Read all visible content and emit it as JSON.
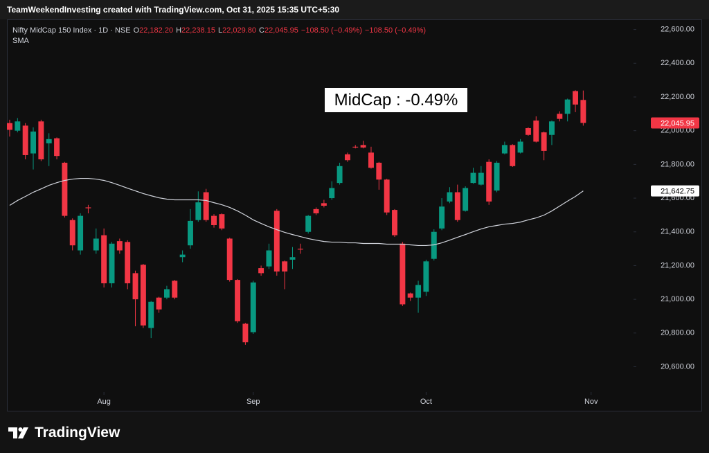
{
  "header": {
    "text": "TeamWeekendInvesting created with TradingView.com, Oct 31, 2025 15:35 UTC+5:30"
  },
  "chart_data": {
    "type": "candlestick",
    "symbol": "Nifty MidCap 150 Index · 1D · NSE",
    "ohlc_legend": [
      {
        "label": "O",
        "value": "22,182.20"
      },
      {
        "label": "H",
        "value": "22,238.15"
      },
      {
        "label": "L",
        "value": "22,029.80"
      },
      {
        "label": "C",
        "value": "22,045.95"
      }
    ],
    "change_labels": [
      "−108.50 (−0.49%)",
      "−108.50 (−0.49%)"
    ],
    "indicator_label": "SMA",
    "annotation": "MidCap : -0.49%",
    "up_color": "#089981",
    "down_color": "#f23645",
    "grid": false,
    "xlim": [
      -0.35,
      79.4
    ],
    "xticks": [
      {
        "value": 12,
        "label": "Aug"
      },
      {
        "value": 31,
        "label": "Sep"
      },
      {
        "value": 53,
        "label": "Oct"
      },
      {
        "value": 74,
        "label": "Nov"
      }
    ],
    "ylim": [
      20450,
      22660
    ],
    "yticks": [
      {
        "value": 20600,
        "label": "20,600.00"
      },
      {
        "value": 20800,
        "label": "20,800.00"
      },
      {
        "value": 21000,
        "label": "21,000.00"
      },
      {
        "value": 21200,
        "label": "21,200.00"
      },
      {
        "value": 21400,
        "label": "21,400.00"
      },
      {
        "value": 21600,
        "label": "21,600.00"
      },
      {
        "value": 21800,
        "label": "21,800.00"
      },
      {
        "value": 22000,
        "label": "22,000.00"
      },
      {
        "value": 22200,
        "label": "22,200.00"
      },
      {
        "value": 22400,
        "label": "22,400.00"
      },
      {
        "value": 22600,
        "label": "22,600.00"
      }
    ],
    "open": [
      22045,
      22000,
      22030,
      21865,
      22055,
      21925,
      21955,
      21810,
      21470,
      21290,
      21545,
      21290,
      21380,
      21095,
      21345,
      21340,
      21155,
      21205,
      20830,
      21010,
      21010,
      21110,
      21250,
      21320,
      21470,
      21635,
      21495,
      21505,
      21360,
      21115,
      20855,
      20805,
      21185,
      21195,
      21525,
      21225,
      21235,
      21300,
      21400,
      21535,
      21570,
      21600,
      21690,
      21860,
      21905,
      21915,
      21870,
      21810,
      21710,
      21530,
      21330,
      21035,
      21010,
      21045,
      21240,
      21420,
      21580,
      21635,
      21525,
      21690,
      21680,
      21815,
      21645,
      21865,
      21915,
      21870,
      22015,
      22060,
      21990,
      21975,
      22100,
      22100,
      22235,
      22182.2
    ],
    "high": [
      22065,
      22075,
      22045,
      22020,
      22065,
      21985,
      21960,
      21815,
      21480,
      21510,
      21560,
      21420,
      21420,
      21340,
      21360,
      21350,
      21170,
      21210,
      20990,
      21015,
      21080,
      21115,
      21290,
      21535,
      21640,
      21655,
      21505,
      21510,
      21365,
      21120,
      20860,
      21110,
      21200,
      21330,
      21535,
      21230,
      21310,
      21330,
      21500,
      21545,
      21590,
      21700,
      21810,
      21870,
      21915,
      21940,
      21905,
      21815,
      21715,
      21535,
      21340,
      21040,
      21110,
      21235,
      21415,
      21600,
      21665,
      21680,
      21670,
      21780,
      21790,
      21830,
      21820,
      21935,
      21920,
      21950,
      22020,
      22085,
      21995,
      22060,
      22115,
      22190,
      22240,
      22238.15
    ],
    "low": [
      21965,
      21990,
      21830,
      21770,
      21820,
      21790,
      21830,
      21485,
      21290,
      21265,
      21510,
      21270,
      21070,
      21070,
      21270,
      21060,
      20840,
      20830,
      20770,
      20920,
      21000,
      21000,
      21220,
      21300,
      21460,
      21460,
      21425,
      21410,
      21105,
      20860,
      20730,
      20795,
      21140,
      21180,
      21140,
      21060,
      21180,
      21270,
      21390,
      21500,
      21545,
      21590,
      21680,
      21815,
      21895,
      21895,
      21775,
      21650,
      21500,
      21370,
      20960,
      20990,
      20920,
      21020,
      21230,
      21410,
      21570,
      21460,
      21520,
      21685,
      21675,
      21560,
      21635,
      21860,
      21785,
      21865,
      21970,
      21930,
      21825,
      21915,
      22055,
      22055,
      22110,
      22029.8
    ],
    "close": [
      22005,
      22055,
      21855,
      21995,
      21830,
      21950,
      21850,
      21495,
      21320,
      21495,
      21540,
      21360,
      21095,
      21330,
      21290,
      21095,
      21000,
      20845,
      20985,
      20940,
      21060,
      21010,
      21265,
      21465,
      21575,
      21470,
      21440,
      21420,
      21115,
      20870,
      20745,
      21100,
      21155,
      21290,
      21165,
      21165,
      21250,
      21295,
      21495,
      21510,
      21555,
      21660,
      21790,
      21825,
      21900,
      21900,
      21780,
      21710,
      21515,
      21380,
      20970,
      21010,
      21085,
      21225,
      21400,
      21550,
      21635,
      21470,
      21660,
      21750,
      21750,
      21580,
      21810,
      21915,
      21790,
      21935,
      21975,
      21935,
      21880,
      22055,
      22070,
      22185,
      22155,
      22045.95
    ],
    "sma": {
      "color": "#d1d4dc",
      "values": [
        21557,
        21586,
        21610,
        21635,
        21655,
        21676,
        21692,
        21705,
        21713,
        21717,
        21717,
        21713,
        21705,
        21692,
        21676,
        21659,
        21643,
        21627,
        21614,
        21602,
        21594,
        21590,
        21590,
        21590,
        21590,
        21586,
        21573,
        21561,
        21545,
        21524,
        21499,
        21471,
        21450,
        21430,
        21413,
        21397,
        21384,
        21372,
        21360,
        21351,
        21343,
        21339,
        21339,
        21335,
        21335,
        21331,
        21331,
        21331,
        21327,
        21327,
        21327,
        21323,
        21319,
        21319,
        21323,
        21335,
        21351,
        21368,
        21384,
        21401,
        21417,
        21430,
        21438,
        21446,
        21450,
        21458,
        21471,
        21483,
        21499,
        21524,
        21553,
        21582,
        21610,
        21642.75
      ]
    },
    "price_tags": [
      {
        "value": 22045.95,
        "label": "22,045.95",
        "color": "#f23645",
        "text_color": "#ffffff"
      },
      {
        "value": 21642.75,
        "label": "21,642.75",
        "color": "#ffffff",
        "text_color": "#000000"
      }
    ]
  },
  "footer": {
    "brand": "TradingView"
  }
}
